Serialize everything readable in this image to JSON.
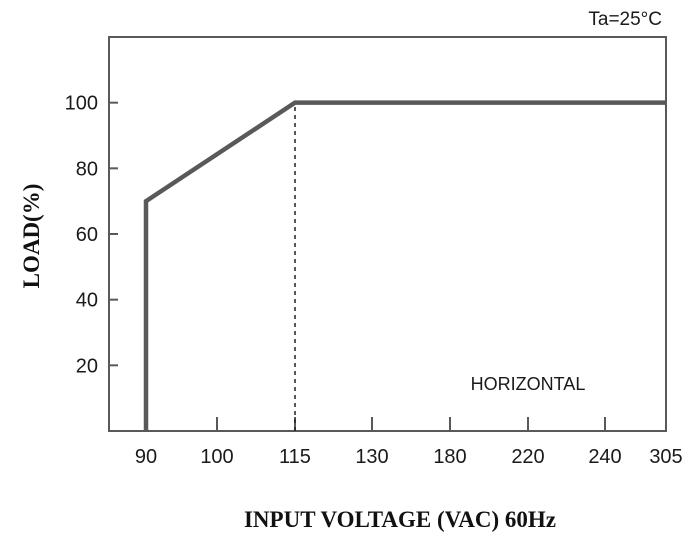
{
  "chart_data": {
    "type": "line",
    "condition": "Ta=25°C",
    "xlabel": "INPUT VOLTAGE (VAC) 60Hz",
    "ylabel": "LOAD(%)",
    "x_ticks": [
      "90",
      "100",
      "115",
      "130",
      "180",
      "220",
      "240",
      "305"
    ],
    "y_ticks": [
      20,
      40,
      60,
      80,
      100
    ],
    "ylim": [
      0,
      120
    ],
    "annotation": "HORIZONTAL",
    "grid": false,
    "series": [
      {
        "points": [
          {
            "x": "90",
            "y": 0
          },
          {
            "x": "90",
            "y": 70
          },
          {
            "x": "115",
            "y": 100
          },
          {
            "x": "305",
            "y": 100
          }
        ]
      }
    ],
    "reference_line": {
      "x": "115",
      "from_y": 0,
      "to_y": 100,
      "style": "dashed"
    },
    "colors": {
      "line": "#595959",
      "axis": "#595959"
    }
  }
}
